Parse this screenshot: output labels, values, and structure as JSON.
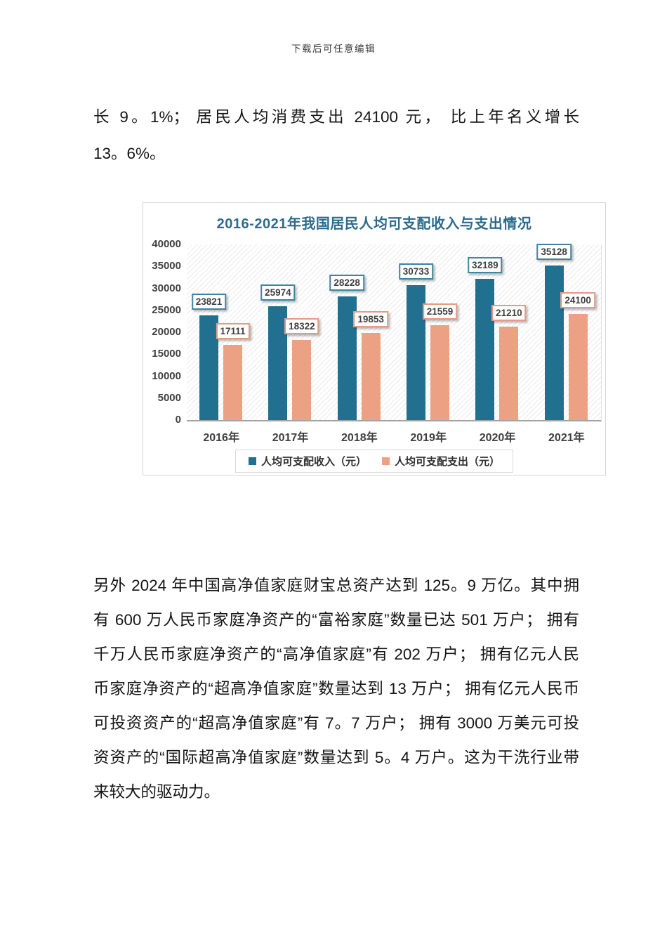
{
  "page": {
    "header_note": "下载后可任意编辑"
  },
  "paragraphs": {
    "p1": {
      "lines": [
        "长 9。1%； 居民人均消费支出 24100 元， 比上年名义增长",
        "13。6%。"
      ]
    },
    "p2": {
      "lines": [
        "另外 2024 年中国高净值家庭财宝总资产达到 125。9 万亿。其中拥",
        "有 600 万人民币家庭净资产的“富裕家庭”数量已达 501 万户； 拥有",
        "千万人民币家庭净资产的“高净值家庭”有 202 万户； 拥有亿元人民",
        "币家庭净资产的“超高净值家庭”数量达到 13 万户； 拥有亿元人民币",
        "可投资资产的“超高净值家庭”有 7。7 万户； 拥有 3000 万美元可投",
        "资资产的“国际超高净值家庭”数量达到 5。4 万户。这为干洗行业带",
        "来较大的驱动力。"
      ]
    }
  },
  "chart_data": {
    "type": "bar",
    "title": "2016-2021年我国居民人均可支配收入与支出情况",
    "title_color": "#2d6b8b",
    "categories": [
      "2016年",
      "2017年",
      "2018年",
      "2019年",
      "2020年",
      "2021年"
    ],
    "series": [
      {
        "name": "人均可支配收入（元）",
        "color": "#22708f",
        "label_border": "#3e85a0",
        "values": [
          23821,
          25974,
          28228,
          30733,
          32189,
          35128
        ]
      },
      {
        "name": "人均可支配支出（元）",
        "color": "#eca184",
        "label_border": "#e29b84",
        "values": [
          17111,
          18322,
          19853,
          21559,
          21210,
          24100
        ]
      }
    ],
    "xlabel": "",
    "ylabel": "",
    "ylim": [
      0,
      40000
    ],
    "yticks": [
      0,
      5000,
      10000,
      15000,
      20000,
      25000,
      30000,
      35000,
      40000
    ],
    "legend_position": "bottom",
    "grid": false,
    "plot_pattern": "diagonal-hatch",
    "axis_color": "#a3a3a3",
    "tick_label_color": "#404040"
  }
}
